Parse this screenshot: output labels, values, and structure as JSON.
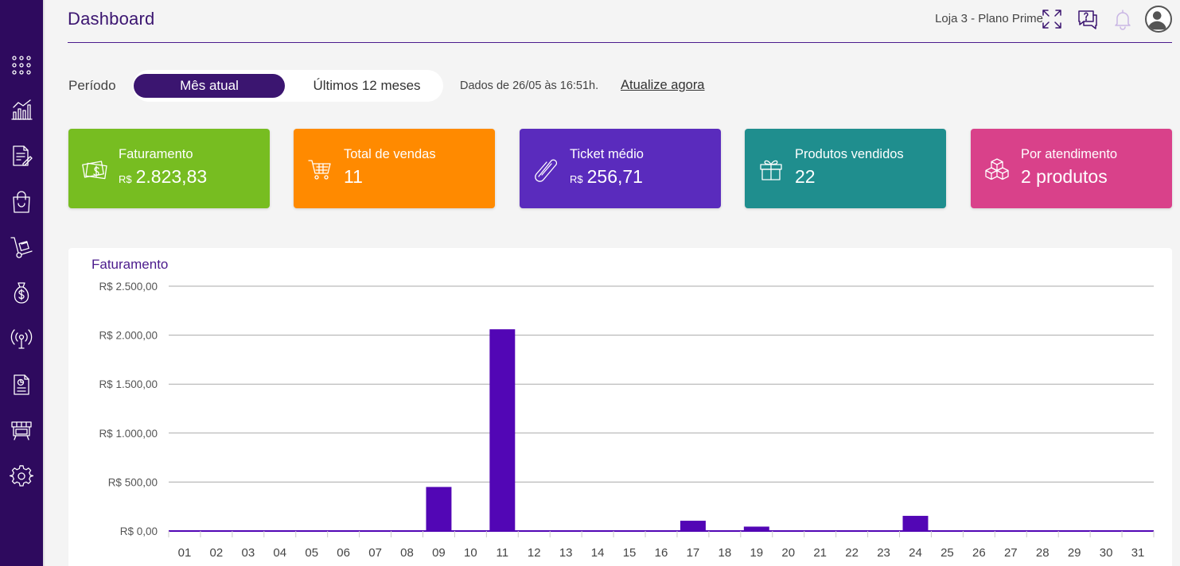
{
  "sidebar": {
    "icons": [
      "apps-grid-icon",
      "bar-chart-icon",
      "edit-document-icon",
      "shopping-bag-icon",
      "hand-truck-icon",
      "money-bag-icon",
      "broadcast-icon",
      "report-document-icon",
      "store-icon",
      "settings-gear-icon"
    ]
  },
  "header": {
    "title": "Dashboard",
    "store": "Loja 3 - Plano Prime",
    "icons": [
      "fullscreen-icon",
      "help-chat-icon",
      "bell-icon",
      "user-avatar-icon"
    ]
  },
  "period": {
    "label": "Período",
    "options": [
      "Mês atual",
      "Últimos 12 meses"
    ],
    "selected": "Mês atual",
    "info": "Dados de 26/05 às 16:51h.",
    "update_link": "Atualize agora"
  },
  "cards": [
    {
      "label": "Faturamento",
      "currency": "R$",
      "value": "2.823,83",
      "color": "#77bd21",
      "icon": "money-icon"
    },
    {
      "label": "Total de vendas",
      "currency": "",
      "value": "11",
      "color": "#ff8a00",
      "icon": "cart-icon"
    },
    {
      "label": "Ticket médio",
      "currency": "R$",
      "value": "256,71",
      "color": "#5a2bbd",
      "icon": "ticket-icon"
    },
    {
      "label": "Produtos vendidos",
      "currency": "",
      "value": "22",
      "color": "#1f8e8e",
      "icon": "gift-icon"
    },
    {
      "label": "Por atendimento",
      "currency": "",
      "value": "2 produtos",
      "color": "#d9418a",
      "icon": "boxes-icon"
    }
  ],
  "chart_data": {
    "type": "bar",
    "title": "Faturamento",
    "categories": [
      "01",
      "02",
      "03",
      "04",
      "05",
      "06",
      "07",
      "08",
      "09",
      "10",
      "11",
      "12",
      "13",
      "14",
      "15",
      "16",
      "17",
      "18",
      "19",
      "20",
      "21",
      "22",
      "23",
      "24",
      "25",
      "26",
      "27",
      "28",
      "29",
      "30",
      "31"
    ],
    "values": [
      0,
      0,
      0,
      0,
      0,
      0,
      0,
      0,
      450,
      0,
      2060,
      0,
      0,
      0,
      0,
      0,
      105,
      0,
      45,
      0,
      0,
      0,
      0,
      155,
      0,
      0,
      0,
      0,
      0,
      0,
      0
    ],
    "y_ticks": [
      "R$ 0,00",
      "R$ 500,00",
      "R$ 1.000,00",
      "R$ 1.500,00",
      "R$ 2.000,00",
      "R$ 2.500,00"
    ],
    "ylim": [
      0,
      2500
    ],
    "grid": true,
    "bar_color": "#5206b5"
  }
}
